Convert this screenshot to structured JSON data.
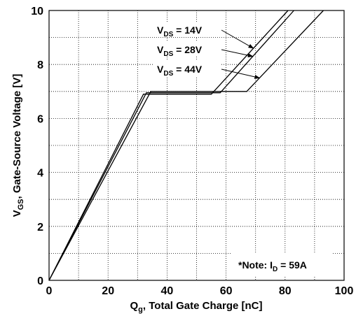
{
  "chart_data": {
    "type": "line",
    "xlabel": {
      "main": "Q",
      "sub": "g",
      "rest": ", Total Gate Charge [nC]"
    },
    "ylabel": {
      "main": "V",
      "sub": "GS",
      "rest": ", Gate-Source Voltage [V]"
    },
    "xlim": [
      0,
      100
    ],
    "ylim": [
      0,
      10
    ],
    "x_ticks": [
      0,
      20,
      40,
      60,
      80,
      100
    ],
    "y_ticks": [
      0,
      2,
      4,
      6,
      8,
      10
    ],
    "x_tick_labels": [
      "0",
      "20",
      "40",
      "60",
      "80",
      "100"
    ],
    "y_tick_labels": [
      "0",
      "2",
      "4",
      "6",
      "8",
      "10"
    ],
    "grid": true,
    "series": [
      {
        "name": {
          "main": "V",
          "sub": "DS",
          "rest": " = 14V"
        },
        "points": [
          [
            0,
            0
          ],
          [
            32,
            6.9
          ],
          [
            55,
            6.9
          ],
          [
            81,
            10
          ]
        ]
      },
      {
        "name": {
          "main": "V",
          "sub": "DS",
          "rest": " = 28V"
        },
        "points": [
          [
            0,
            0
          ],
          [
            33,
            6.95
          ],
          [
            58,
            6.95
          ],
          [
            83,
            10
          ]
        ]
      },
      {
        "name": {
          "main": "V",
          "sub": "DS",
          "rest": " = 44V"
        },
        "points": [
          [
            0,
            0
          ],
          [
            34.5,
            7.0
          ],
          [
            67,
            7.0
          ],
          [
            93,
            10
          ]
        ]
      }
    ],
    "annotation": {
      "text": "*Note: I",
      "sub": "D",
      "rest": " = 59A"
    }
  }
}
